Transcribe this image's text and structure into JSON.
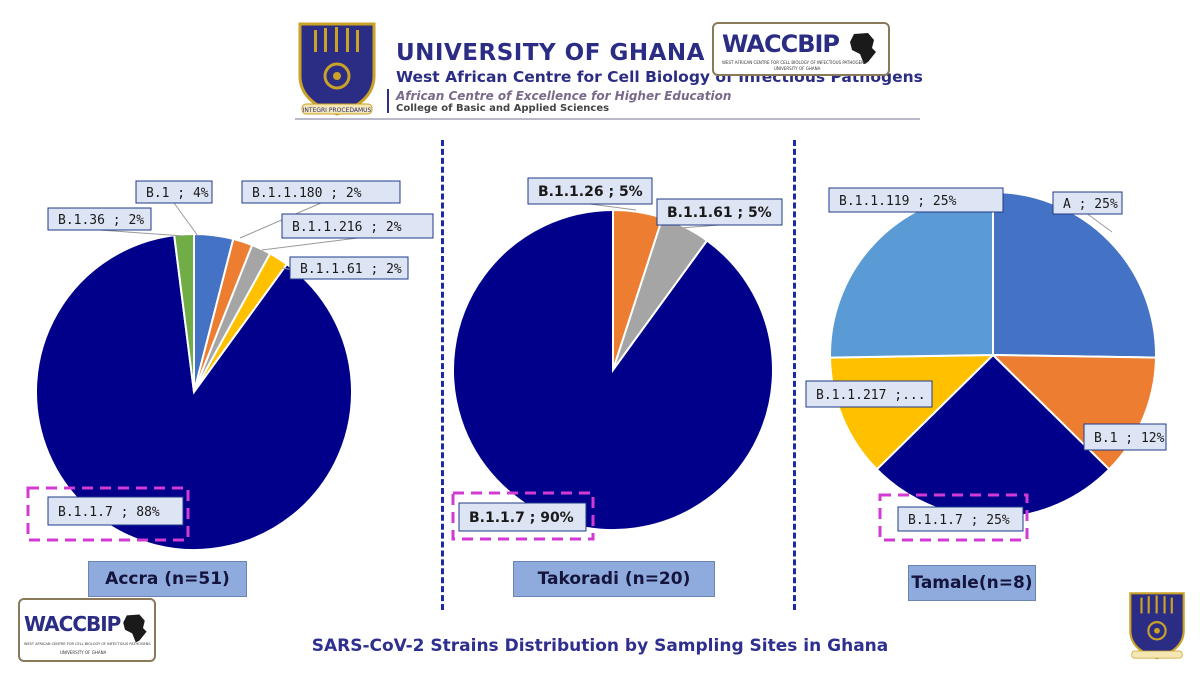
{
  "header": {
    "university": "UNIVERSITY OF GHANA",
    "centre": "West African Centre for Cell Biology of Infectious Pathogens",
    "ace": "African Centre of Excellence for Higher Education",
    "college": "College of Basic and Applied Sciences",
    "crest_motto": "INTEGRI PROCEDAMUS",
    "logo_text": "WACCBIP",
    "logo_small_1": "WEST AFRICAN CENTRE FOR CELL BIOLOGY OF INFECTIOUS PATHOGENS",
    "logo_small_2": "UNIVERSITY OF GHANA"
  },
  "sites": [
    {
      "label": "Accra (n=51)"
    },
    {
      "label": "Takoradi (n=20)"
    },
    {
      "label": "Tamale(n=8)"
    }
  ],
  "footer": {
    "title": "SARS-CoV-2 Strains Distribution by Sampling Sites in Ghana"
  },
  "colors": {
    "navy": "#00008b",
    "blue": "#4472c4",
    "orange": "#ed7d31",
    "gray": "#a5a5a5",
    "yellow": "#ffc000",
    "green": "#70ad47",
    "lightblue": "#5b9bd5",
    "label_fill": "#dde4f3",
    "highlight": "#d33ad3",
    "site_label_fill": "#8faadc",
    "title": "#2e2f8e"
  },
  "chart_data": [
    {
      "type": "pie",
      "title": "Accra (n=51)",
      "slices": [
        {
          "name": "B.1",
          "value": 4,
          "color": "#4472c4",
          "label": "B.1 ; 4%"
        },
        {
          "name": "B.1.1.180",
          "value": 2,
          "color": "#ed7d31",
          "label": "B.1.1.180 ; 2%"
        },
        {
          "name": "B.1.1.216",
          "value": 2,
          "color": "#a5a5a5",
          "label": "B.1.1.216 ; 2%"
        },
        {
          "name": "B.1.1.61",
          "value": 2,
          "color": "#ffc000",
          "label": "B.1.1.61 ; 2%"
        },
        {
          "name": "B.1.1.7",
          "value": 88,
          "color": "#00008b",
          "label": "B.1.1.7 ; 88%",
          "highlighted": true
        },
        {
          "name": "B.1.36",
          "value": 2,
          "color": "#70ad47",
          "label": "B.1.36 ; 2%"
        }
      ]
    },
    {
      "type": "pie",
      "title": "Takoradi (n=20)",
      "slices": [
        {
          "name": "B.1.1.26",
          "value": 5,
          "color": "#ed7d31",
          "label": "B.1.1.26 ; 5%"
        },
        {
          "name": "B.1.1.61",
          "value": 5,
          "color": "#a5a5a5",
          "label": "B.1.1.61 ; 5%"
        },
        {
          "name": "B.1.1.7",
          "value": 90,
          "color": "#00008b",
          "label": "B.1.1.7 ; 90%",
          "highlighted": true
        }
      ]
    },
    {
      "type": "pie",
      "title": "Tamale(n=8)",
      "slices": [
        {
          "name": "A",
          "value": 25,
          "color": "#4472c4",
          "label": "A ; 25%"
        },
        {
          "name": "B.1",
          "value": 12,
          "color": "#ed7d31",
          "label": "B.1 ; 12%"
        },
        {
          "name": "B.1.1.7",
          "value": 25,
          "color": "#00008b",
          "label": "B.1.1.7 ; 25%",
          "highlighted": true
        },
        {
          "name": "B.1.1.217",
          "value": 12,
          "color": "#ffc000",
          "label": "B.1.1.217 ;..."
        },
        {
          "name": "B.1.1.119",
          "value": 25,
          "color": "#5b9bd5",
          "label": "B.1.1.119 ; 25%"
        }
      ]
    }
  ]
}
